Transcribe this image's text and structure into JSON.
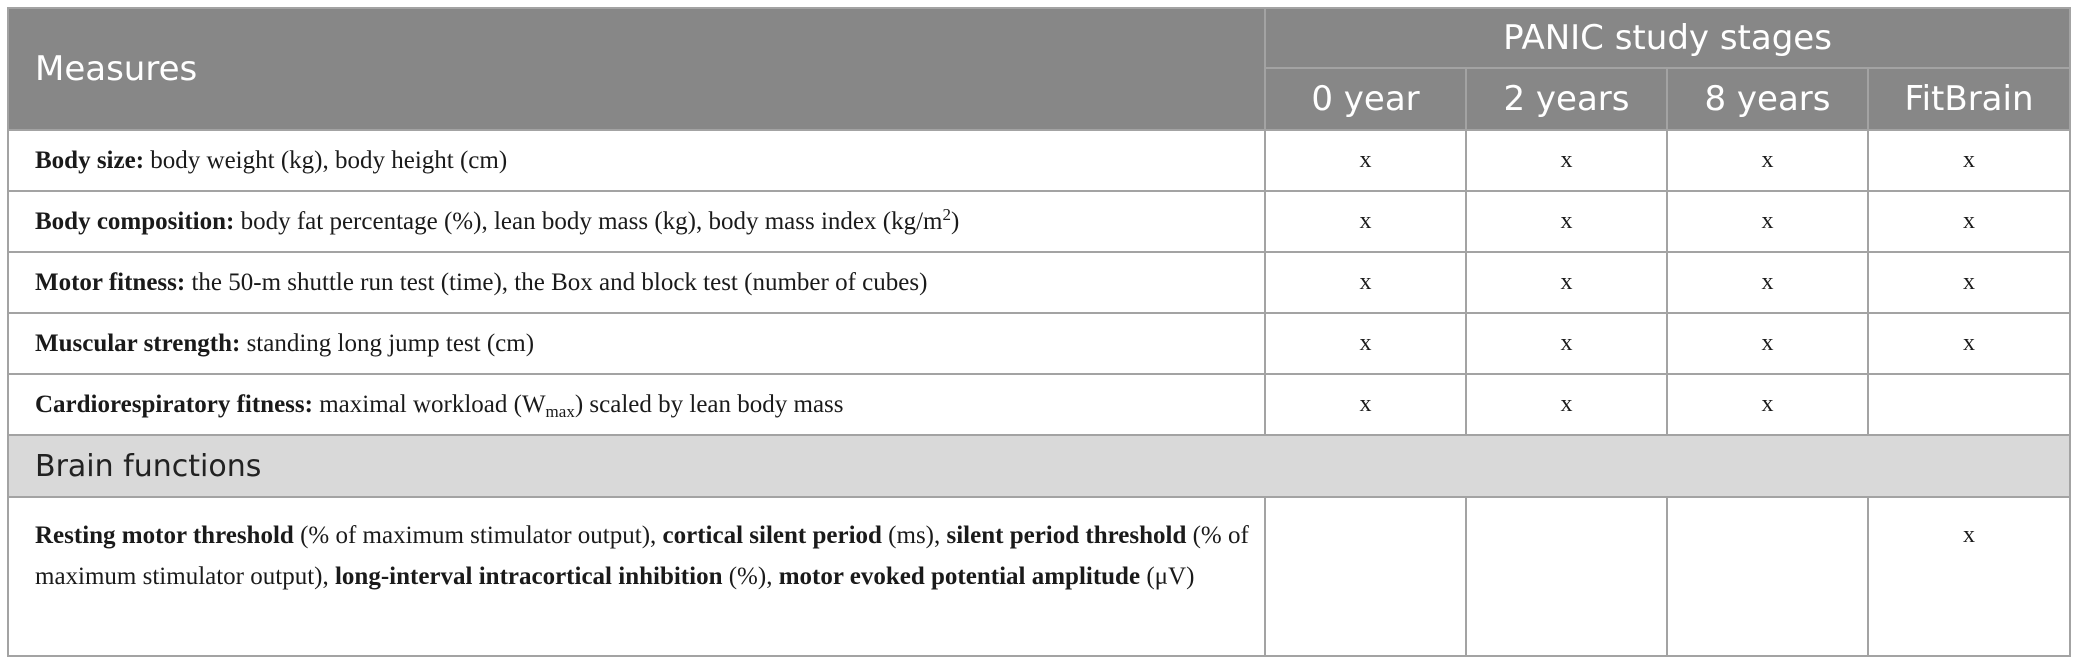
{
  "header": {
    "measures": "Measures",
    "stages_title": "PANIC study stages",
    "stages": [
      "0 year",
      "2 years",
      "8 years",
      "FitBrain"
    ]
  },
  "rows": [
    {
      "bold": "Body size:",
      "text": " body weight (kg), body height (cm)",
      "marks": [
        "x",
        "x",
        "x",
        "x"
      ]
    },
    {
      "bold": "Body composition:",
      "text": " body fat percentage (%), lean body mass (kg), body mass index (kg/m",
      "sup": "2",
      "text_after": ")",
      "marks": [
        "x",
        "x",
        "x",
        "x"
      ]
    },
    {
      "bold": "Motor fitness:",
      "text": " the 50-m shuttle run test (time), the Box and block test (number of cubes)",
      "marks": [
        "x",
        "x",
        "x",
        "x"
      ]
    },
    {
      "bold": "Muscular strength:",
      "text": " standing long jump test (cm)",
      "marks": [
        "x",
        "x",
        "x",
        "x"
      ]
    },
    {
      "bold": "Cardiorespiratory fitness:",
      "text": " maximal workload (W",
      "sub": "max",
      "text_after": ") scaled by lean body mass",
      "marks": [
        "x",
        "x",
        "x",
        ""
      ]
    }
  ],
  "section": "Brain functions",
  "brain_row": {
    "parts": [
      {
        "b": "Resting motor threshold"
      },
      {
        "t": " (% of maximum stimulator output), "
      },
      {
        "b": "cortical silent period"
      },
      {
        "t": " (ms), "
      },
      {
        "b": "silent period threshold"
      },
      {
        "t": " (% of maximum stimulator output), "
      },
      {
        "b": "long-interval intracortical inhibition"
      },
      {
        "t": " (%), "
      },
      {
        "b": "motor evoked potential amplitude"
      },
      {
        "t": " (μV)"
      }
    ],
    "marks": [
      "",
      "",
      "",
      "x"
    ]
  }
}
